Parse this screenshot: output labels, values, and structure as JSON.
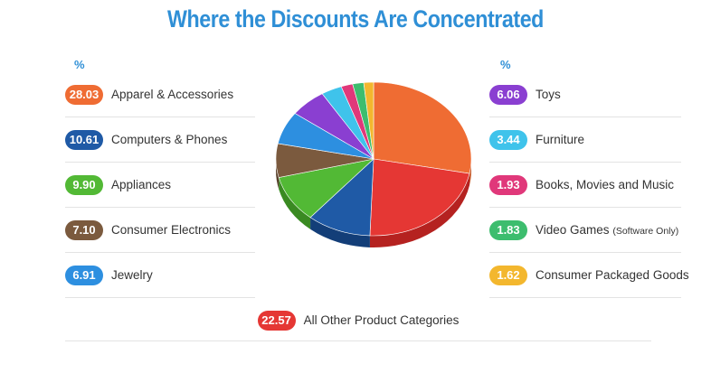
{
  "title": "Where the Discounts Are Concentrated",
  "percent_symbol": "%",
  "chart_data": {
    "type": "pie",
    "title": "Where the Discounts Are Concentrated",
    "unit": "%",
    "slices": [
      {
        "label": "Apparel & Accessories",
        "value": 28.03,
        "color": "#ef6c33",
        "side": "#c4521f",
        "display": "28.03"
      },
      {
        "label": "All Other Product Categories",
        "value": 22.57,
        "color": "#e53734",
        "side": "#b52220",
        "display": "22.57"
      },
      {
        "label": "Computers & Phones",
        "value": 10.61,
        "color": "#1f5aa6",
        "side": "#133e78",
        "display": "10.61"
      },
      {
        "label": "Appliances",
        "value": 9.9,
        "color": "#52b935",
        "side": "#3a8a22",
        "display": "9.90"
      },
      {
        "label": "Consumer Electronics",
        "value": 7.1,
        "color": "#7b5a3e",
        "side": "#58402b",
        "display": "7.10"
      },
      {
        "label": "Jewelry",
        "value": 6.91,
        "color": "#2d8fe0",
        "side": "#1c68aa",
        "display": "6.91"
      },
      {
        "label": "Toys",
        "value": 6.06,
        "color": "#8a3fd1",
        "side": "#652b9e",
        "display": "6.06"
      },
      {
        "label": "Furniture",
        "value": 3.44,
        "color": "#3fc3eb",
        "side": "#2a96b8",
        "display": "3.44"
      },
      {
        "label": "Books, Movies and Music",
        "value": 1.93,
        "color": "#e0387a",
        "side": "#ad2459",
        "display": "1.93"
      },
      {
        "label": "Video Games",
        "value": 1.83,
        "color": "#3dbd6e",
        "side": "#2a8d4f",
        "display": "1.83"
      },
      {
        "label": "Consumer Packaged Goods",
        "value": 1.62,
        "color": "#f3b72e",
        "side": "#c48f1a",
        "display": "1.62"
      }
    ]
  },
  "legend_left": [
    {
      "value": "28.03",
      "label": "Apparel & Accessories",
      "color": "#ef6c33"
    },
    {
      "value": "10.61",
      "label": "Computers & Phones",
      "color": "#1f5aa6"
    },
    {
      "value": "9.90",
      "label": "Appliances",
      "color": "#52b935"
    },
    {
      "value": "7.10",
      "label": "Consumer Electronics",
      "color": "#7b5a3e"
    },
    {
      "value": "6.91",
      "label": "Jewelry",
      "color": "#2d8fe0"
    }
  ],
  "legend_right": [
    {
      "value": "6.06",
      "label": "Toys",
      "color": "#8a3fd1"
    },
    {
      "value": "3.44",
      "label": "Furniture",
      "color": "#3fc3eb"
    },
    {
      "value": "1.93",
      "label": "Books, Movies and Music",
      "color": "#e0387a"
    },
    {
      "value": "1.83",
      "label": "Video Games",
      "note": "(Software Only)",
      "color": "#3dbd6e"
    },
    {
      "value": "1.62",
      "label": "Consumer Packaged Goods",
      "color": "#f3b72e"
    }
  ],
  "legend_bottom": {
    "value": "22.57",
    "label": "All Other Product Categories",
    "color": "#e53734"
  }
}
